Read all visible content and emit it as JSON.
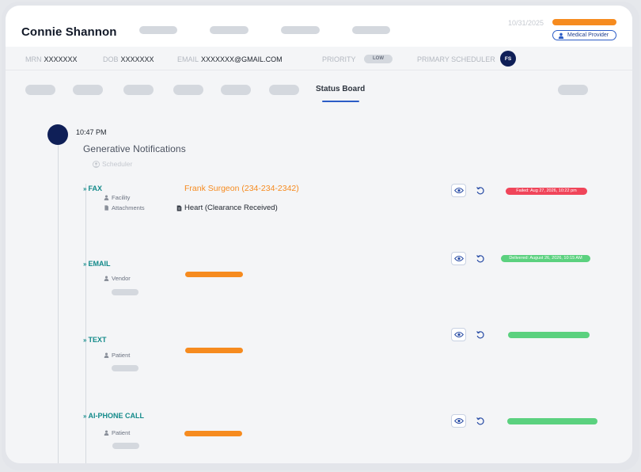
{
  "header": {
    "patient_name": "Connie Shannon",
    "date": "10/31/2025",
    "role_badge": "Medical Provider"
  },
  "patient_info": {
    "mrn_label": "MRN",
    "mrn_value": "XXXXXXX",
    "dob_label": "DOB",
    "dob_value": "XXXXXXX",
    "email_label": "EMAIL",
    "email_value": "XXXXXXX@GMAIL.COM",
    "priority_label": "PRIORITY",
    "priority_value": "LOW",
    "scheduler_label": "PRIMARY SCHEDULER",
    "scheduler_initials": "FS"
  },
  "tabs": {
    "active_label": "Status Board"
  },
  "timeline": {
    "time": "10:47 PM",
    "title": "Generative Notifications",
    "actor": "Scheduler",
    "entries": [
      {
        "channel": "FAX",
        "sub_labels": [
          "Facility",
          "Attachments"
        ],
        "contact": "Frank Surgeon (234-234-2342)",
        "attachment": "Heart (Clearance Received)",
        "status": "Failed: Aug 27, 2026, 10:22 pm"
      },
      {
        "channel": "EMAIL",
        "sub_labels": [
          "Vendor"
        ],
        "status": "Delivered: August 26, 2026, 10:15 AM"
      },
      {
        "channel": "TEXT",
        "sub_labels": [
          "Patient"
        ]
      },
      {
        "channel": "AI-PHONE CALL",
        "sub_labels": [
          "Patient"
        ]
      }
    ]
  },
  "icons": {
    "person": "person-icon",
    "document": "document-icon",
    "eye": "eye-icon",
    "retry": "retry-icon",
    "chevron": "chevron-double-down-icon"
  },
  "colors": {
    "navy": "#0f1f57",
    "orange": "#f68b1f",
    "teal": "#138a8a",
    "blue": "#2b5cc6",
    "red": "#f0455a",
    "green": "#5bd17f"
  }
}
